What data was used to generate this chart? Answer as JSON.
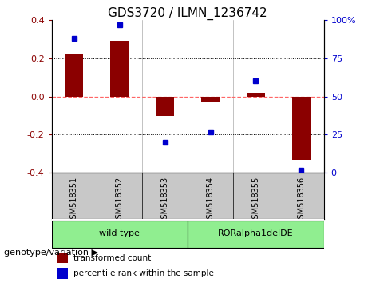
{
  "title": "GDS3720 / ILMN_1236742",
  "samples": [
    "GSM518351",
    "GSM518352",
    "GSM518353",
    "GSM518354",
    "GSM518355",
    "GSM518356"
  ],
  "red_bars": [
    0.22,
    0.29,
    -0.1,
    -0.03,
    0.02,
    -0.33
  ],
  "blue_dots": [
    88,
    97,
    20,
    27,
    60,
    2
  ],
  "ylim_left": [
    -0.4,
    0.4
  ],
  "ylim_right": [
    0,
    100
  ],
  "yticks_left": [
    -0.4,
    -0.2,
    0.0,
    0.2,
    0.4
  ],
  "yticks_right": [
    0,
    25,
    50,
    75,
    100
  ],
  "ytick_labels_right": [
    "0",
    "25",
    "50",
    "75",
    "100%"
  ],
  "hline_y": 0.0,
  "dotted_lines": [
    -0.2,
    0.2
  ],
  "wild_type_indices": [
    0,
    1,
    2
  ],
  "ror_indices": [
    3,
    4,
    5
  ],
  "wild_type_label": "wild type",
  "ror_label": "RORalpha1delDE",
  "genotype_label": "genotype/variation",
  "legend_red": "transformed count",
  "legend_blue": "percentile rank within the sample",
  "bar_color": "#8B0000",
  "dot_color": "#0000CD",
  "hline_color": "#FF6666",
  "dotted_color": "#000000",
  "wild_type_color": "#90EE90",
  "ror_color": "#90EE90",
  "label_box_color": "#C8C8C8",
  "bg_color": "#FFFFFF",
  "title_fontsize": 11,
  "tick_fontsize": 8,
  "label_fontsize": 7,
  "genotype_fontsize": 8
}
